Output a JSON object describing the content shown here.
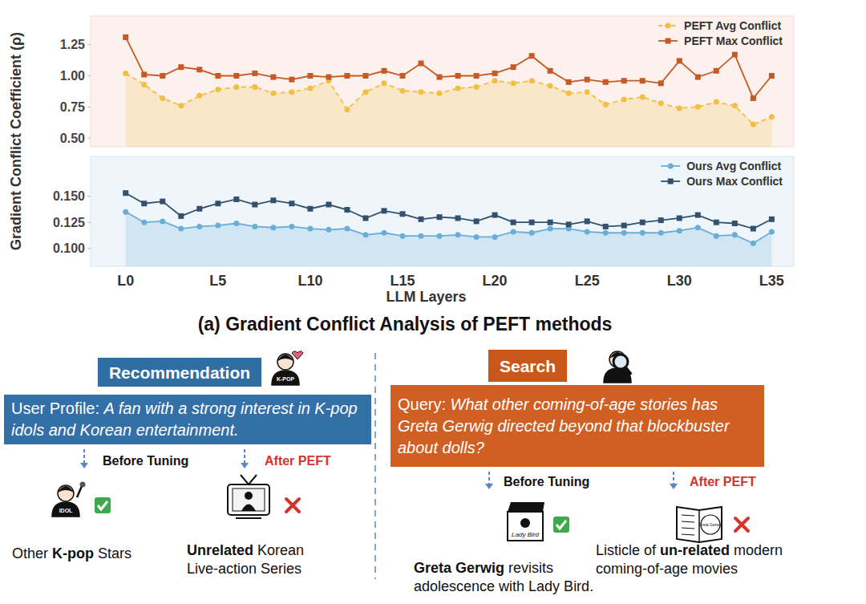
{
  "chart_data": [
    {
      "type": "line",
      "y_label": "Gradient Conflict Coefficient (ρ)",
      "categories": [
        "L0",
        null,
        null,
        null,
        null,
        "L5",
        null,
        null,
        null,
        null,
        "L10",
        null,
        null,
        null,
        null,
        "L15",
        null,
        null,
        null,
        null,
        "L20",
        null,
        null,
        null,
        null,
        "L25",
        null,
        null,
        null,
        null,
        "L30",
        null,
        null,
        null,
        null,
        "L35"
      ],
      "ylim": [
        0.43,
        1.48
      ],
      "yticks": [
        {
          "value": 0.5,
          "label": "0.50"
        },
        0.75,
        {
          "value": 1,
          "label": "1.00"
        },
        1.25
      ],
      "grid": false,
      "legend": "upper right",
      "tick_labels": "y",
      "series": [
        {
          "name": "PEFT Avg Conflict",
          "type": "area",
          "color": "#f2bf45",
          "marker": "circle",
          "line_style": "dashed",
          "values": [
            1.02,
            0.93,
            0.82,
            0.76,
            0.84,
            0.89,
            0.91,
            0.91,
            0.86,
            0.87,
            0.9,
            0.96,
            0.73,
            0.87,
            0.94,
            0.88,
            0.87,
            0.86,
            0.9,
            0.91,
            0.96,
            0.94,
            0.96,
            0.92,
            0.86,
            0.87,
            0.77,
            0.81,
            0.83,
            0.78,
            0.74,
            0.75,
            0.79,
            0.76,
            0.61,
            0.67
          ]
        },
        {
          "name": "PEFT Max Conflict",
          "type": "line",
          "color": "#c45a26",
          "marker": "square",
          "line_style": "solid",
          "values": [
            1.31,
            1.01,
            1.0,
            1.07,
            1.05,
            1.0,
            1.0,
            1.02,
            0.99,
            0.97,
            1.0,
            0.99,
            1.0,
            1.0,
            1.04,
            1.0,
            1.1,
            0.99,
            1.0,
            1.0,
            1.02,
            1.07,
            1.16,
            1.04,
            0.95,
            0.97,
            0.95,
            0.96,
            0.96,
            0.94,
            1.12,
            0.99,
            1.04,
            1.17,
            0.82,
            1.0
          ]
        }
      ]
    },
    {
      "type": "line",
      "x_label": "LLM Layers",
      "categories": [
        "L0",
        null,
        null,
        null,
        null,
        "L5",
        null,
        null,
        null,
        null,
        "L10",
        null,
        null,
        null,
        null,
        "L15",
        null,
        null,
        null,
        null,
        "L20",
        null,
        null,
        null,
        null,
        "L25",
        null,
        null,
        null,
        null,
        "L30",
        null,
        null,
        null,
        null,
        "L35"
      ],
      "ylim": [
        0.083,
        0.188
      ],
      "yticks": [
        {
          "value": 0.1,
          "label": "0.100"
        },
        0.125,
        {
          "value": 0.15,
          "label": "0.150"
        }
      ],
      "grid": false,
      "legend": "upper right",
      "tick_labels": true,
      "series": [
        {
          "name": "Ours Avg Conflict",
          "type": "area",
          "color": "#6aaed8",
          "marker": "circle",
          "line_style": "solid",
          "values": [
            0.135,
            0.125,
            0.126,
            0.119,
            0.121,
            0.122,
            0.124,
            0.121,
            0.12,
            0.121,
            0.119,
            0.118,
            0.119,
            0.113,
            0.115,
            0.112,
            0.112,
            0.112,
            0.113,
            0.111,
            0.111,
            0.116,
            0.115,
            0.119,
            0.119,
            0.116,
            0.115,
            0.115,
            0.115,
            0.115,
            0.117,
            0.12,
            0.112,
            0.113,
            0.105,
            0.116
          ]
        },
        {
          "name": "Ours Max Conflict",
          "type": "line",
          "color": "#33506c",
          "marker": "square",
          "line_style": "solid",
          "values": [
            0.153,
            0.143,
            0.145,
            0.131,
            0.138,
            0.143,
            0.147,
            0.142,
            0.146,
            0.143,
            0.138,
            0.142,
            0.137,
            0.129,
            0.136,
            0.133,
            0.128,
            0.13,
            0.129,
            0.126,
            0.132,
            0.125,
            0.125,
            0.125,
            0.123,
            0.126,
            0.121,
            0.122,
            0.125,
            0.127,
            0.129,
            0.132,
            0.125,
            0.124,
            0.119,
            0.128
          ]
        }
      ]
    }
  ],
  "caption": "(a) Gradient Conflict Analysis of PEFT methods",
  "diagram": {
    "panels": [
      {
        "title": "Recommendation",
        "prompt_label": "User Profile:",
        "prompt": "A fan with a strong interest in K-pop idols and Korean entertainment.",
        "before_label": "Before Tuning",
        "after_label": "After PEFT",
        "before_result": {
          "text": "Other K-pop Stars",
          "bold": "K-pop",
          "correct": true
        },
        "after_result": {
          "text": "Unrelated Korean Live-action Series",
          "bold": "Unrelated",
          "correct": false
        },
        "icons": {
          "user": "K-POP",
          "before": "IDOL"
        }
      },
      {
        "title": "Search",
        "prompt_label": "Query:",
        "prompt": "What other coming-of-age stories has Greta Gerwig directed beyond that blockbuster about dolls?",
        "before_label": "Before Tuning",
        "after_label": "After PEFT",
        "before_result": {
          "text": "Greta Gerwig revisits adolescence with Lady Bird.",
          "bold": "Greta Gerwig",
          "correct": true
        },
        "after_result": {
          "text": "Listicle of un-related modern coming-of-age movies",
          "bold": "un-related",
          "correct": false
        },
        "icons": {
          "before": "Lady Bird",
          "after": "Greta Gerwig"
        }
      }
    ]
  }
}
